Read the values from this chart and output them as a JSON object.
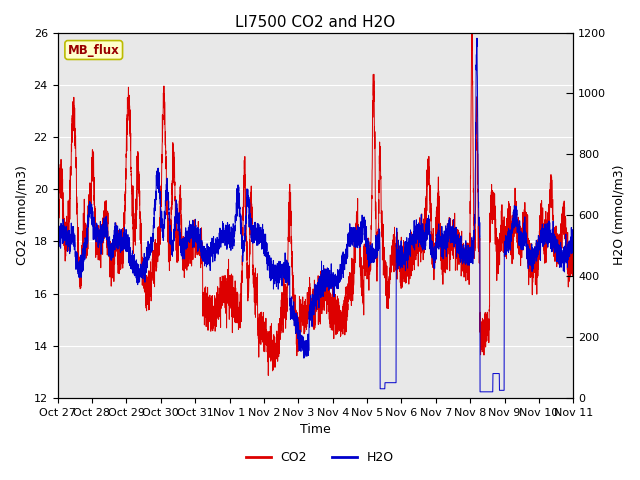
{
  "title": "LI7500 CO2 and H2O",
  "xlabel": "Time",
  "ylabel_left": "CO2 (mmol/m3)",
  "ylabel_right": "H2O (mmol/m3)",
  "ylim_left": [
    12,
    26
  ],
  "ylim_right": [
    0,
    1200
  ],
  "yticks_left": [
    12,
    14,
    16,
    18,
    20,
    22,
    24,
    26
  ],
  "yticks_right": [
    0,
    200,
    400,
    600,
    800,
    1000,
    1200
  ],
  "xtick_labels": [
    "Oct 27",
    "Oct 28",
    "Oct 29",
    "Oct 30",
    "Oct 31",
    "Nov 1",
    "Nov 2",
    "Nov 3",
    "Nov 4",
    "Nov 5",
    "Nov 6",
    "Nov 7",
    "Nov 8",
    "Nov 9",
    "Nov 10",
    "Nov 11"
  ],
  "co2_color": "#dd0000",
  "h2o_color": "#0000cc",
  "legend_co2": "CO2",
  "legend_h2o": "H2O",
  "watermark_text": "MB_flux",
  "watermark_bg": "#ffffcc",
  "watermark_border": "#bbbb00",
  "watermark_text_color": "#990000",
  "plot_bg_color": "#e8e8e8",
  "title_fontsize": 11,
  "axis_label_fontsize": 9,
  "tick_fontsize": 8,
  "legend_fontsize": 9
}
